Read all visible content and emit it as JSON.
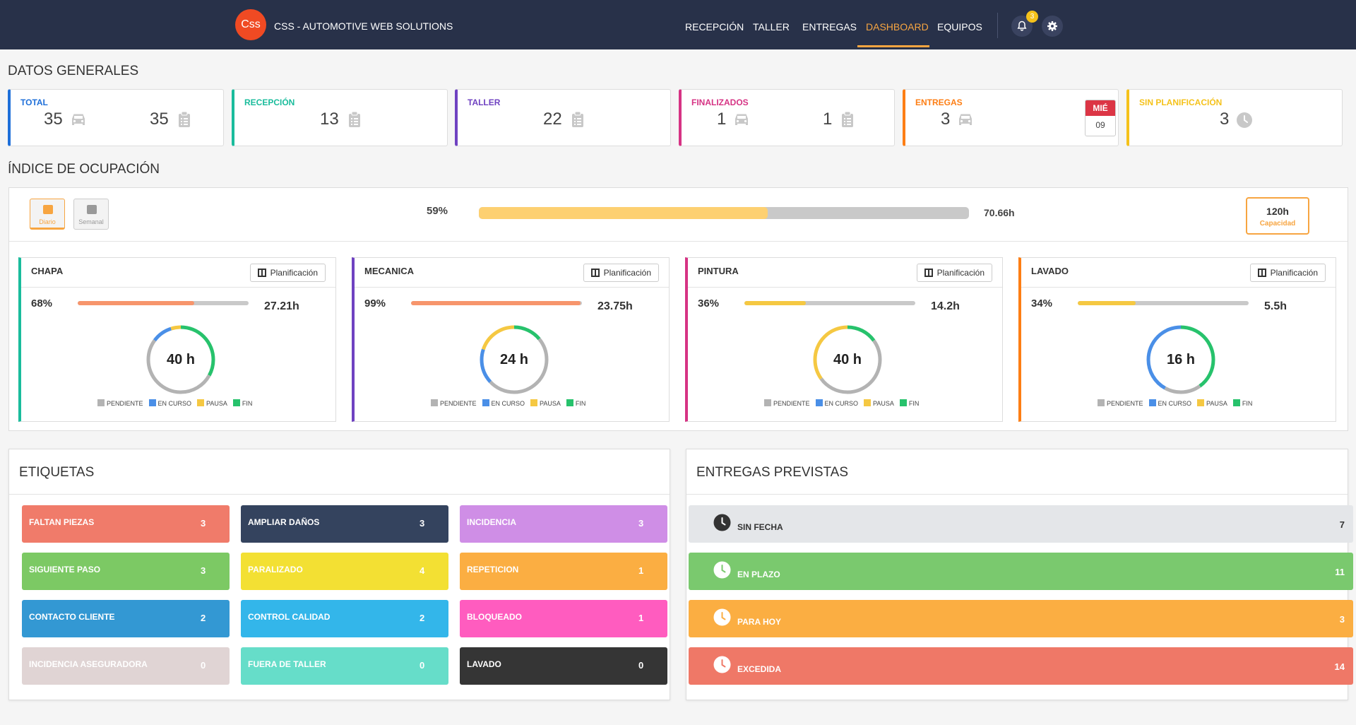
{
  "header": {
    "logo_text": "Css",
    "brand": "CSS - AUTOMOTIVE WEB SOLUTIONS",
    "nav": [
      "RECEPCIÓN",
      "TALLER",
      "ENTREGAS",
      "DASHBOARD",
      "EQUIPOS"
    ],
    "active_nav": "DASHBOARD",
    "notification_count": "3",
    "icons": [
      "bell-icon",
      "gear-icon"
    ]
  },
  "colors": {
    "header_bg": "#283149",
    "accent": "#f7a541",
    "total": "#1e6fd9",
    "recepcion": "#1abc9c",
    "taller": "#6f42c1",
    "finalizados": "#d63384",
    "entregas": "#fd7e14",
    "sin_planificacion": "#f5c21b",
    "pendiente": "#b3b3b3",
    "en_curso": "#4a8fe7",
    "pausa": "#f5c842",
    "fin": "#27c26c"
  },
  "general": {
    "title": "DATOS GENERALES",
    "cards": {
      "total": {
        "label": "TOTAL",
        "vehicles": "35",
        "orders": "35"
      },
      "recepcion": {
        "label": "RECEPCIÓN",
        "orders": "13"
      },
      "taller": {
        "label": "TALLER",
        "orders": "22"
      },
      "finalizados": {
        "label": "FINALIZADOS",
        "vehicles": "1",
        "orders": "1"
      },
      "entregas": {
        "label": "ENTREGAS",
        "vehicles": "3",
        "cal_day": "MIÉ",
        "cal_date": "09"
      },
      "sin_planificacion": {
        "label": "SIN PLANIFICACIÓN",
        "count": "3"
      }
    }
  },
  "occupancy": {
    "title": "ÍNDICE DE OCUPACIÓN",
    "toggles": {
      "daily": "Diario",
      "weekly": "Semanal",
      "active": "Diario"
    },
    "percent_label": "59%",
    "percent": 59,
    "hours": "70.66h",
    "capacity_value": "120h",
    "capacity_label": "Capacidad"
  },
  "departments": [
    {
      "name": "CHAPA",
      "pct_label": "68%",
      "pct": 68,
      "hours": "27.21h",
      "donut_label": "40 h",
      "bar_color": "#f7956c",
      "accent": "#1abc9c",
      "donut": {
        "pendiente": 0.52,
        "en_curso": 0.1,
        "pausa": 0.05,
        "fin": 0.33
      }
    },
    {
      "name": "MECANICA",
      "pct_label": "99%",
      "pct": 99,
      "hours": "23.75h",
      "donut_label": "24 h",
      "bar_color": "#f7956c",
      "accent": "#6f42c1",
      "donut": {
        "pendiente": 0.49,
        "en_curso": 0.17,
        "pausa": 0.2,
        "fin": 0.14
      }
    },
    {
      "name": "PINTURA",
      "pct_label": "36%",
      "pct": 36,
      "hours": "14.2h",
      "donut_label": "40 h",
      "bar_color": "#f5c842",
      "accent": "#d63384",
      "donut": {
        "pendiente": 0.5,
        "en_curso": 0.0,
        "pausa": 0.35,
        "fin": 0.15
      }
    },
    {
      "name": "LAVADO",
      "pct_label": "34%",
      "pct": 34,
      "hours": "5.5h",
      "donut_label": "16 h",
      "bar_color": "#f5c842",
      "accent": "#fd7e14",
      "donut": {
        "pendiente": 0.18,
        "en_curso": 0.42,
        "pausa": 0.0,
        "fin": 0.4
      }
    }
  ],
  "legend": [
    "PENDIENTE",
    "EN CURSO",
    "PAUSA",
    "FIN"
  ],
  "plan_button": "Planificación",
  "labels_panel": {
    "title": "ETIQUETAS",
    "items": [
      {
        "label": "FALTAN PIEZAS",
        "count": "3",
        "color": "#f07b6a"
      },
      {
        "label": "AMPLIAR DAÑOS",
        "count": "3",
        "color": "#34435e"
      },
      {
        "label": "INCIDENCIA",
        "count": "3",
        "color": "#cf8ee6"
      },
      {
        "label": "SIGUIENTE PASO",
        "count": "3",
        "color": "#7cc964"
      },
      {
        "label": "PARALIZADO",
        "count": "4",
        "color": "#f3e033"
      },
      {
        "label": "REPETICION",
        "count": "1",
        "color": "#fbae42"
      },
      {
        "label": "CONTACTO CLIENTE",
        "count": "2",
        "color": "#3398d3"
      },
      {
        "label": "CONTROL CALIDAD",
        "count": "2",
        "color": "#33b6ea"
      },
      {
        "label": "BLOQUEADO",
        "count": "1",
        "color": "#ff5cbf"
      },
      {
        "label": "INCIDENCIA ASEGURADORA",
        "count": "0",
        "color": "#e0d4d4"
      },
      {
        "label": "FUERA DE TALLER",
        "count": "0",
        "color": "#66ddc9"
      },
      {
        "label": "LAVADO",
        "count": "0",
        "color": "#353535"
      }
    ]
  },
  "deliveries_panel": {
    "title": "ENTREGAS PREVISTAS",
    "items": [
      {
        "label": "SIN FECHA",
        "count": "7",
        "color": "#e4e6e9",
        "text": "#333333"
      },
      {
        "label": "EN PLAZO",
        "count": "11",
        "color": "#7ac96e",
        "text": "#ffffff"
      },
      {
        "label": "PARA HOY",
        "count": "3",
        "color": "#fbae42",
        "text": "#ffffff"
      },
      {
        "label": "EXCEDIDA",
        "count": "14",
        "color": "#ef7867",
        "text": "#ffffff"
      }
    ]
  }
}
